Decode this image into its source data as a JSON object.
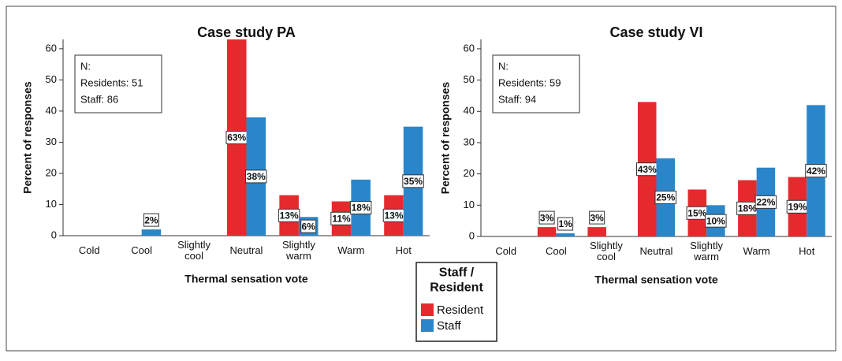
{
  "chart_data": [
    {
      "type": "bar",
      "title": "Case study PA",
      "x_label": "Thermal sensation vote",
      "y_label": "Percent of responses",
      "categories": [
        "Cold",
        "Cool",
        "Slightly cool",
        "Neutral",
        "Slightly warm",
        "Warm",
        "Hot"
      ],
      "series": [
        {
          "name": "Resident",
          "color": "#e52a2e",
          "values": [
            null,
            null,
            null,
            63,
            13,
            11,
            13
          ],
          "value_labels": [
            null,
            null,
            null,
            "63%",
            "13%",
            "11%",
            "13%"
          ]
        },
        {
          "name": "Staff",
          "color": "#2b86c9",
          "values": [
            null,
            2,
            null,
            38,
            6,
            18,
            35
          ],
          "value_labels": [
            null,
            "2%",
            null,
            "38%",
            "6%",
            "18%",
            "35%"
          ]
        }
      ],
      "ylim": [
        0,
        63
      ],
      "yticks": [
        0,
        10,
        20,
        30,
        40,
        50,
        60
      ],
      "annotation": [
        "N:",
        "Residents: 51",
        "Staff: 86"
      ]
    },
    {
      "type": "bar",
      "title": "Case study VI",
      "x_label": "Thermal sensation vote",
      "y_label": "Percent of responses",
      "categories": [
        "Cold",
        "Cool",
        "Slightly cool",
        "Neutral",
        "Slightly warm",
        "Warm",
        "Hot"
      ],
      "series": [
        {
          "name": "Resident",
          "color": "#e52a2e",
          "values": [
            null,
            3,
            3,
            43,
            15,
            18,
            19
          ],
          "value_labels": [
            null,
            "3%",
            "3%",
            "43%",
            "15%",
            "18%",
            "19%"
          ]
        },
        {
          "name": "Staff",
          "color": "#2b86c9",
          "values": [
            null,
            1,
            null,
            25,
            10,
            22,
            42
          ],
          "value_labels": [
            null,
            "1%",
            null,
            "25%",
            "10%",
            "22%",
            "42%"
          ]
        }
      ],
      "ylim": [
        0,
        63
      ],
      "yticks": [
        0,
        10,
        20,
        30,
        40,
        50,
        60
      ],
      "annotation": [
        "N:",
        "Residents: 59",
        "Staff: 94"
      ]
    }
  ],
  "legend_title": "Staff / Resident"
}
